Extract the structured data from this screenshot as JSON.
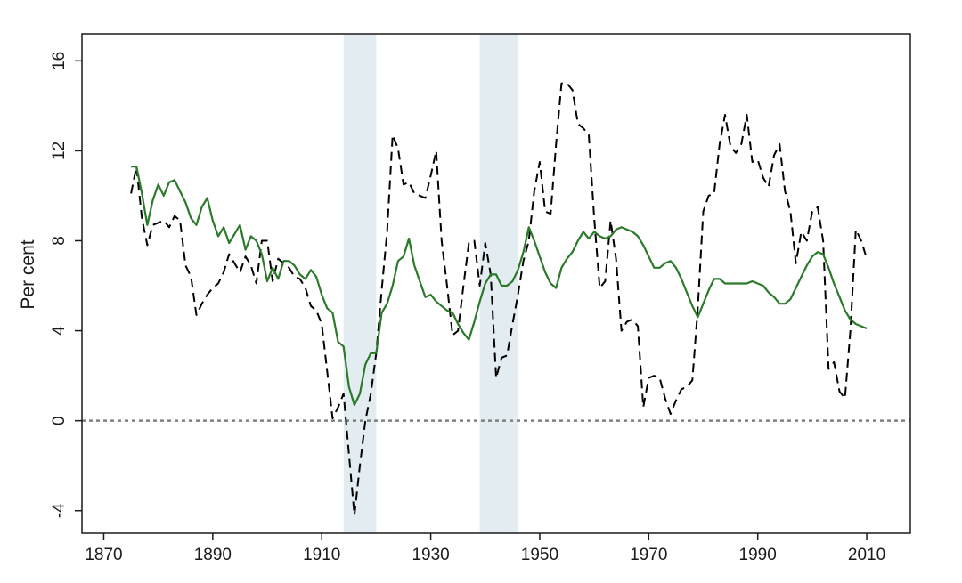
{
  "chart_data": {
    "type": "line",
    "title": "",
    "xlabel": "",
    "ylabel": "Per cent",
    "xlim": [
      1866,
      2018
    ],
    "ylim": [
      -5,
      17.2
    ],
    "x_ticks": [
      1870,
      1890,
      1910,
      1930,
      1950,
      1970,
      1990,
      2010
    ],
    "y_ticks": [
      -4,
      0,
      4,
      8,
      12,
      16
    ],
    "grid": false,
    "legend": "none",
    "reference_line": {
      "y": 0,
      "style": "dotted",
      "color": "#808080"
    },
    "shaded_periods": [
      {
        "start": 1914,
        "end": 1920,
        "color": "#e3ecf1"
      },
      {
        "start": 1939,
        "end": 1946,
        "color": "#e3ecf1"
      }
    ],
    "series": [
      {
        "style": "dashed",
        "color": "#000000",
        "points": [
          [
            1875,
            10.1
          ],
          [
            1876,
            11.3
          ],
          [
            1877,
            9.0
          ],
          [
            1878,
            7.8
          ],
          [
            1879,
            8.7
          ],
          [
            1880,
            8.8
          ],
          [
            1881,
            8.9
          ],
          [
            1882,
            8.6
          ],
          [
            1883,
            9.1
          ],
          [
            1884,
            8.9
          ],
          [
            1885,
            6.9
          ],
          [
            1886,
            6.4
          ],
          [
            1887,
            4.7
          ],
          [
            1888,
            5.2
          ],
          [
            1889,
            5.6
          ],
          [
            1890,
            5.9
          ],
          [
            1891,
            6.1
          ],
          [
            1892,
            6.6
          ],
          [
            1893,
            7.4
          ],
          [
            1894,
            7.0
          ],
          [
            1895,
            6.6
          ],
          [
            1896,
            7.3
          ],
          [
            1897,
            6.9
          ],
          [
            1898,
            6.1
          ],
          [
            1899,
            8.0
          ],
          [
            1900,
            8.0
          ],
          [
            1901,
            6.2
          ],
          [
            1902,
            7.2
          ],
          [
            1903,
            7.0
          ],
          [
            1904,
            6.8
          ],
          [
            1905,
            6.4
          ],
          [
            1906,
            6.3
          ],
          [
            1907,
            5.9
          ],
          [
            1908,
            5.1
          ],
          [
            1909,
            4.9
          ],
          [
            1910,
            4.3
          ],
          [
            1911,
            2.2
          ],
          [
            1912,
            0.1
          ],
          [
            1913,
            0.6
          ],
          [
            1914,
            1.2
          ],
          [
            1915,
            -1.5
          ],
          [
            1916,
            -4.2
          ],
          [
            1917,
            -2.0
          ],
          [
            1918,
            0.0
          ],
          [
            1919,
            1.2
          ],
          [
            1920,
            3.0
          ],
          [
            1921,
            5.8
          ],
          [
            1922,
            8.4
          ],
          [
            1923,
            12.7
          ],
          [
            1924,
            12.1
          ],
          [
            1925,
            10.5
          ],
          [
            1926,
            10.6
          ],
          [
            1927,
            10.1
          ],
          [
            1928,
            10.0
          ],
          [
            1929,
            9.9
          ],
          [
            1930,
            10.9
          ],
          [
            1931,
            12.0
          ],
          [
            1932,
            8.0
          ],
          [
            1933,
            6.0
          ],
          [
            1934,
            3.8
          ],
          [
            1935,
            4.0
          ],
          [
            1936,
            6.0
          ],
          [
            1937,
            7.9
          ],
          [
            1938,
            8.0
          ],
          [
            1939,
            6.0
          ],
          [
            1940,
            7.9
          ],
          [
            1941,
            6.5
          ],
          [
            1942,
            1.9
          ],
          [
            1943,
            2.8
          ],
          [
            1944,
            2.9
          ],
          [
            1945,
            4.3
          ],
          [
            1946,
            5.6
          ],
          [
            1947,
            7.1
          ],
          [
            1948,
            8.0
          ],
          [
            1949,
            10.2
          ],
          [
            1950,
            11.5
          ],
          [
            1951,
            9.3
          ],
          [
            1952,
            9.2
          ],
          [
            1953,
            12.3
          ],
          [
            1954,
            15.0
          ],
          [
            1955,
            15.0
          ],
          [
            1956,
            14.7
          ],
          [
            1957,
            13.2
          ],
          [
            1958,
            13.0
          ],
          [
            1959,
            12.7
          ],
          [
            1960,
            9.0
          ],
          [
            1961,
            5.9
          ],
          [
            1962,
            6.2
          ],
          [
            1963,
            8.9
          ],
          [
            1964,
            7.2
          ],
          [
            1965,
            4.0
          ],
          [
            1966,
            4.4
          ],
          [
            1967,
            4.5
          ],
          [
            1968,
            4.2
          ],
          [
            1969,
            0.6
          ],
          [
            1970,
            1.9
          ],
          [
            1971,
            2.0
          ],
          [
            1972,
            1.9
          ],
          [
            1973,
            1.0
          ],
          [
            1974,
            0.3
          ],
          [
            1975,
            0.9
          ],
          [
            1976,
            1.4
          ],
          [
            1977,
            1.5
          ],
          [
            1978,
            1.8
          ],
          [
            1979,
            5.0
          ],
          [
            1980,
            9.3
          ],
          [
            1981,
            10.0
          ],
          [
            1982,
            10.1
          ],
          [
            1983,
            12.3
          ],
          [
            1984,
            13.6
          ],
          [
            1985,
            12.2
          ],
          [
            1986,
            11.9
          ],
          [
            1987,
            12.3
          ],
          [
            1988,
            13.6
          ],
          [
            1989,
            11.5
          ],
          [
            1990,
            11.6
          ],
          [
            1991,
            10.8
          ],
          [
            1992,
            10.4
          ],
          [
            1993,
            11.8
          ],
          [
            1994,
            12.3
          ],
          [
            1995,
            10.2
          ],
          [
            1996,
            9.3
          ],
          [
            1997,
            7.0
          ],
          [
            1998,
            8.4
          ],
          [
            1999,
            8.0
          ],
          [
            2000,
            9.3
          ],
          [
            2001,
            9.5
          ],
          [
            2002,
            8.0
          ],
          [
            2003,
            2.3
          ],
          [
            2004,
            2.6
          ],
          [
            2005,
            1.3
          ],
          [
            2006,
            1.0
          ],
          [
            2007,
            4.0
          ],
          [
            2008,
            8.5
          ],
          [
            2009,
            8.0
          ],
          [
            2010,
            7.2
          ]
        ]
      },
      {
        "style": "solid",
        "color": "#2a7a2a",
        "points": [
          [
            1875,
            11.3
          ],
          [
            1876,
            11.3
          ],
          [
            1877,
            10.1
          ],
          [
            1878,
            8.7
          ],
          [
            1879,
            9.8
          ],
          [
            1880,
            10.5
          ],
          [
            1881,
            10.0
          ],
          [
            1882,
            10.6
          ],
          [
            1883,
            10.7
          ],
          [
            1884,
            10.2
          ],
          [
            1885,
            9.7
          ],
          [
            1886,
            9.0
          ],
          [
            1887,
            8.7
          ],
          [
            1888,
            9.5
          ],
          [
            1889,
            9.9
          ],
          [
            1890,
            8.9
          ],
          [
            1891,
            8.2
          ],
          [
            1892,
            8.6
          ],
          [
            1893,
            7.9
          ],
          [
            1894,
            8.3
          ],
          [
            1895,
            8.7
          ],
          [
            1896,
            7.6
          ],
          [
            1897,
            8.2
          ],
          [
            1898,
            8.0
          ],
          [
            1899,
            7.4
          ],
          [
            1900,
            6.2
          ],
          [
            1901,
            6.8
          ],
          [
            1902,
            6.3
          ],
          [
            1903,
            7.1
          ],
          [
            1904,
            7.1
          ],
          [
            1905,
            6.9
          ],
          [
            1906,
            6.5
          ],
          [
            1907,
            6.3
          ],
          [
            1908,
            6.7
          ],
          [
            1909,
            6.4
          ],
          [
            1910,
            5.6
          ],
          [
            1911,
            5.0
          ],
          [
            1912,
            4.8
          ],
          [
            1913,
            3.5
          ],
          [
            1914,
            3.3
          ],
          [
            1915,
            1.5
          ],
          [
            1916,
            0.7
          ],
          [
            1917,
            1.2
          ],
          [
            1918,
            2.5
          ],
          [
            1919,
            3.0
          ],
          [
            1920,
            3.0
          ],
          [
            1921,
            4.8
          ],
          [
            1922,
            5.2
          ],
          [
            1923,
            6.0
          ],
          [
            1924,
            7.1
          ],
          [
            1925,
            7.3
          ],
          [
            1926,
            8.1
          ],
          [
            1927,
            6.9
          ],
          [
            1928,
            6.2
          ],
          [
            1929,
            5.5
          ],
          [
            1930,
            5.6
          ],
          [
            1931,
            5.3
          ],
          [
            1932,
            5.1
          ],
          [
            1933,
            4.9
          ],
          [
            1934,
            4.8
          ],
          [
            1935,
            4.3
          ],
          [
            1936,
            3.9
          ],
          [
            1937,
            3.6
          ],
          [
            1938,
            4.4
          ],
          [
            1939,
            5.3
          ],
          [
            1940,
            6.1
          ],
          [
            1941,
            6.5
          ],
          [
            1942,
            6.5
          ],
          [
            1943,
            6.0
          ],
          [
            1944,
            6.0
          ],
          [
            1945,
            6.2
          ],
          [
            1946,
            6.7
          ],
          [
            1947,
            7.5
          ],
          [
            1948,
            8.6
          ],
          [
            1949,
            8.0
          ],
          [
            1950,
            7.3
          ],
          [
            1951,
            6.6
          ],
          [
            1952,
            6.1
          ],
          [
            1953,
            5.9
          ],
          [
            1954,
            6.8
          ],
          [
            1955,
            7.2
          ],
          [
            1956,
            7.5
          ],
          [
            1957,
            8.0
          ],
          [
            1958,
            8.4
          ],
          [
            1959,
            8.1
          ],
          [
            1960,
            8.4
          ],
          [
            1961,
            8.2
          ],
          [
            1962,
            8.1
          ],
          [
            1963,
            8.2
          ],
          [
            1964,
            8.5
          ],
          [
            1965,
            8.6
          ],
          [
            1966,
            8.5
          ],
          [
            1967,
            8.4
          ],
          [
            1968,
            8.2
          ],
          [
            1969,
            7.8
          ],
          [
            1970,
            7.3
          ],
          [
            1971,
            6.8
          ],
          [
            1972,
            6.8
          ],
          [
            1973,
            7.0
          ],
          [
            1974,
            7.1
          ],
          [
            1975,
            6.8
          ],
          [
            1976,
            6.3
          ],
          [
            1977,
            5.7
          ],
          [
            1978,
            5.1
          ],
          [
            1979,
            4.6
          ],
          [
            1980,
            5.2
          ],
          [
            1981,
            5.8
          ],
          [
            1982,
            6.3
          ],
          [
            1983,
            6.3
          ],
          [
            1984,
            6.1
          ],
          [
            1985,
            6.1
          ],
          [
            1986,
            6.1
          ],
          [
            1987,
            6.1
          ],
          [
            1988,
            6.1
          ],
          [
            1989,
            6.2
          ],
          [
            1990,
            6.1
          ],
          [
            1991,
            6.0
          ],
          [
            1992,
            5.7
          ],
          [
            1993,
            5.5
          ],
          [
            1994,
            5.2
          ],
          [
            1995,
            5.2
          ],
          [
            1996,
            5.4
          ],
          [
            1997,
            5.9
          ],
          [
            1998,
            6.4
          ],
          [
            1999,
            6.9
          ],
          [
            2000,
            7.3
          ],
          [
            2001,
            7.5
          ],
          [
            2002,
            7.4
          ],
          [
            2003,
            6.8
          ],
          [
            2004,
            6.1
          ],
          [
            2005,
            5.5
          ],
          [
            2006,
            4.9
          ],
          [
            2007,
            4.5
          ],
          [
            2008,
            4.3
          ],
          [
            2009,
            4.2
          ],
          [
            2010,
            4.1
          ]
        ]
      }
    ]
  }
}
